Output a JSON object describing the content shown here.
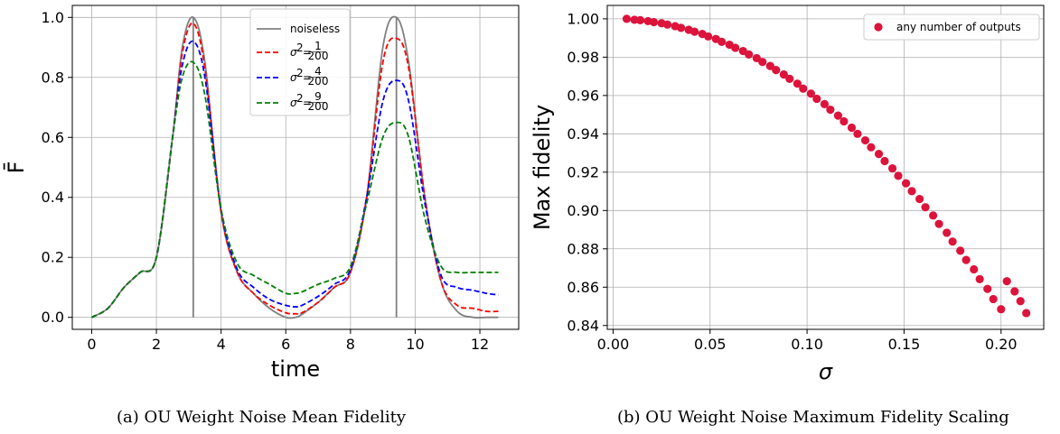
{
  "colors": {
    "noiseless": "#808080",
    "sigma1": "#ff0000",
    "sigma4": "#0000ff",
    "sigma9": "#008000",
    "points": "#dc143c",
    "grid": "#b0b0b0"
  },
  "captions": {
    "a": "(a) OU Weight Noise Mean Fidelity",
    "b": "(b) OU Weight Noise Maximum Fidelity Scaling"
  },
  "chart_data": [
    {
      "type": "line",
      "xlabel": "time",
      "ylabel": "F̄",
      "xlim": [
        -0.6,
        13.2
      ],
      "ylim": [
        -0.04,
        1.04
      ],
      "xticks": [
        0,
        2,
        4,
        6,
        8,
        10,
        12
      ],
      "yticks": [
        0.0,
        0.2,
        0.4,
        0.6,
        0.8,
        1.0
      ],
      "xtick_labels": [
        "0",
        "2",
        "4",
        "6",
        "8",
        "10",
        "12"
      ],
      "ytick_labels": [
        "0.0",
        "0.2",
        "0.4",
        "0.6",
        "0.8",
        "1.0"
      ],
      "grid": true,
      "legend_position": "top-center",
      "vlines": [
        3.14,
        9.42
      ],
      "series": [
        {
          "name": "noiseless",
          "style": "solid",
          "x": [
            0,
            0.5,
            1.0,
            1.5,
            2.0,
            2.5,
            2.8,
            3.14,
            3.5,
            4.0,
            4.5,
            5.0,
            5.5,
            6.0,
            6.3,
            6.5,
            7.0,
            7.5,
            8.0,
            8.5,
            9.0,
            9.42,
            9.8,
            10.3,
            10.8,
            11.3,
            11.8,
            12.2,
            12.57
          ],
          "y": [
            0.0,
            0.03,
            0.1,
            0.15,
            0.2,
            0.6,
            0.9,
            1.0,
            0.85,
            0.35,
            0.15,
            0.08,
            0.03,
            0.0,
            0.0,
            0.01,
            0.05,
            0.1,
            0.15,
            0.4,
            0.9,
            1.0,
            0.85,
            0.4,
            0.12,
            0.02,
            0.0,
            0.0,
            0.0
          ]
        },
        {
          "name": "σ² = 1/200",
          "style": "dashed",
          "x": [
            0,
            0.5,
            1.0,
            1.5,
            2.0,
            2.5,
            2.8,
            3.14,
            3.5,
            4.0,
            4.5,
            5.0,
            5.5,
            6.0,
            6.3,
            6.5,
            7.0,
            7.5,
            8.0,
            8.5,
            9.0,
            9.42,
            9.8,
            10.3,
            10.8,
            11.3,
            11.8,
            12.2,
            12.57
          ],
          "y": [
            0.0,
            0.03,
            0.1,
            0.15,
            0.2,
            0.6,
            0.88,
            0.98,
            0.83,
            0.35,
            0.15,
            0.08,
            0.04,
            0.015,
            0.012,
            0.015,
            0.05,
            0.1,
            0.15,
            0.4,
            0.85,
            0.93,
            0.83,
            0.4,
            0.12,
            0.04,
            0.03,
            0.02,
            0.02
          ]
        },
        {
          "name": "σ² = 4/200",
          "style": "dashed",
          "x": [
            0,
            0.5,
            1.0,
            1.5,
            2.0,
            2.5,
            2.8,
            3.14,
            3.5,
            4.0,
            4.5,
            5.0,
            5.5,
            6.0,
            6.3,
            6.5,
            7.0,
            7.5,
            8.0,
            8.5,
            9.0,
            9.42,
            9.8,
            10.3,
            10.8,
            11.3,
            11.8,
            12.2,
            12.57
          ],
          "y": [
            0.0,
            0.03,
            0.1,
            0.15,
            0.2,
            0.6,
            0.84,
            0.92,
            0.8,
            0.36,
            0.16,
            0.1,
            0.06,
            0.04,
            0.035,
            0.04,
            0.07,
            0.11,
            0.16,
            0.4,
            0.72,
            0.79,
            0.72,
            0.38,
            0.14,
            0.1,
            0.09,
            0.08,
            0.075
          ]
        },
        {
          "name": "σ² = 9/200",
          "style": "dashed",
          "x": [
            0,
            0.5,
            1.0,
            1.5,
            2.0,
            2.5,
            2.8,
            3.14,
            3.5,
            4.0,
            4.5,
            5.0,
            5.5,
            6.0,
            6.3,
            6.5,
            7.0,
            7.5,
            8.0,
            8.5,
            9.0,
            9.42,
            9.8,
            10.3,
            10.8,
            11.3,
            11.8,
            12.2,
            12.57
          ],
          "y": [
            0.0,
            0.03,
            0.1,
            0.15,
            0.2,
            0.6,
            0.8,
            0.85,
            0.74,
            0.36,
            0.18,
            0.14,
            0.11,
            0.08,
            0.08,
            0.085,
            0.11,
            0.13,
            0.17,
            0.38,
            0.6,
            0.65,
            0.6,
            0.33,
            0.17,
            0.15,
            0.15,
            0.15,
            0.15
          ]
        }
      ]
    },
    {
      "type": "scatter",
      "xlabel": "σ",
      "ylabel": "Max fidelity",
      "xlim": [
        -0.003,
        0.222
      ],
      "ylim": [
        0.838,
        1.007
      ],
      "xticks": [
        0.0,
        0.05,
        0.1,
        0.15,
        0.2
      ],
      "yticks": [
        0.84,
        0.86,
        0.88,
        0.9,
        0.92,
        0.94,
        0.96,
        0.98,
        1.0
      ],
      "xtick_labels": [
        "0.00",
        "0.05",
        "0.10",
        "0.15",
        "0.20"
      ],
      "ytick_labels": [
        "0.84",
        "0.86",
        "0.88",
        "0.90",
        "0.92",
        "0.94",
        "0.96",
        "0.98",
        "1.00"
      ],
      "grid": true,
      "legend_position": "top-right",
      "series": [
        {
          "name": "any number of outputs",
          "x": [
            0.007,
            0.011,
            0.014,
            0.018,
            0.021,
            0.025,
            0.028,
            0.032,
            0.035,
            0.039,
            0.042,
            0.046,
            0.049,
            0.053,
            0.056,
            0.06,
            0.063,
            0.067,
            0.07,
            0.074,
            0.077,
            0.081,
            0.084,
            0.088,
            0.091,
            0.095,
            0.098,
            0.102,
            0.105,
            0.109,
            0.112,
            0.116,
            0.119,
            0.123,
            0.126,
            0.13,
            0.133,
            0.137,
            0.14,
            0.144,
            0.147,
            0.151,
            0.154,
            0.158,
            0.161,
            0.165,
            0.168,
            0.172,
            0.175,
            0.179,
            0.182,
            0.186,
            0.189,
            0.193,
            0.196,
            0.2,
            0.203,
            0.207,
            0.21,
            0.213
          ],
          "y": [
            1.0,
            0.9995,
            0.9993,
            0.9988,
            0.9983,
            0.9977,
            0.997,
            0.9962,
            0.9953,
            0.9943,
            0.9933,
            0.9921,
            0.9908,
            0.9895,
            0.988,
            0.9865,
            0.9849,
            0.9832,
            0.9814,
            0.9795,
            0.9775,
            0.9754,
            0.9733,
            0.971,
            0.9687,
            0.9662,
            0.9636,
            0.961,
            0.9583,
            0.9555,
            0.9526,
            0.9495,
            0.9465,
            0.9432,
            0.94,
            0.9366,
            0.933,
            0.9295,
            0.9258,
            0.922,
            0.9181,
            0.9142,
            0.9101,
            0.906,
            0.9017,
            0.8974,
            0.893,
            0.8884,
            0.8838,
            0.879,
            0.8742,
            0.8693,
            0.8642,
            0.8591,
            0.8538,
            0.8485,
            0.8631,
            0.8578,
            0.8527,
            0.8465
          ]
        }
      ]
    }
  ]
}
